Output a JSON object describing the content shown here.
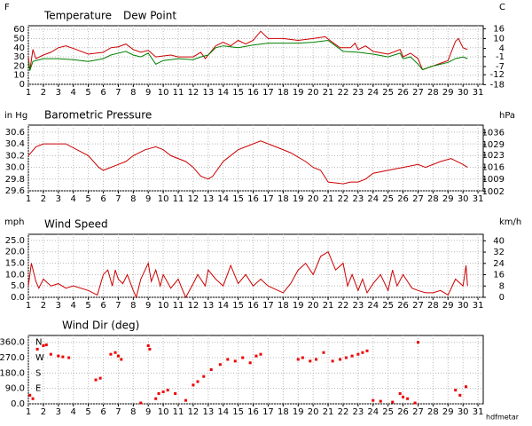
{
  "chart_data": [
    {
      "type": "line",
      "y_unit": "F",
      "y2_unit": "C",
      "xlim": [
        1,
        31.35
      ],
      "xticks": [
        1,
        2,
        3,
        4,
        5,
        6,
        7,
        8,
        9,
        10,
        11,
        12,
        13,
        14,
        15,
        16,
        17,
        18,
        19,
        20,
        21,
        22,
        23,
        24,
        25,
        26,
        27,
        28,
        29,
        30,
        31
      ],
      "ylim": [
        0,
        64
      ],
      "yticks": [
        0,
        10,
        20,
        30,
        40,
        50,
        60
      ],
      "y2lim": [
        -17.8,
        17.8
      ],
      "y2ticks": [
        16,
        10,
        4,
        -1,
        -7,
        -12,
        -18
      ],
      "grid": true,
      "series": [
        {
          "name": "Temperature",
          "color": "#cc0000",
          "x": [
            1,
            1.1,
            1.3,
            1.5,
            2,
            2.5,
            3,
            3.5,
            4.2,
            5,
            6,
            6.5,
            7,
            7.5,
            8,
            8.5,
            9,
            9.5,
            10.5,
            11,
            12,
            12.5,
            12.8,
            13.5,
            14,
            14.5,
            15,
            15.5,
            16,
            16.5,
            17,
            18,
            19,
            20,
            20.8,
            21.2,
            21.8,
            22.5,
            22.8,
            23,
            23.5,
            24,
            25,
            25.8,
            26,
            26.5,
            27,
            27.3,
            28,
            29,
            29.5,
            29.7,
            30,
            30.3
          ],
          "values": [
            30,
            15,
            38,
            28,
            32,
            35,
            40,
            42,
            38,
            33,
            35,
            40,
            41,
            44,
            38,
            35,
            37,
            30,
            32,
            30,
            30,
            35,
            28,
            42,
            46,
            42,
            48,
            44,
            48,
            58,
            50,
            50,
            48,
            50,
            52,
            47,
            40,
            40,
            45,
            38,
            42,
            36,
            33,
            38,
            30,
            34,
            28,
            16,
            20,
            26,
            47,
            50,
            40,
            38
          ]
        },
        {
          "name": "Dew Point",
          "color": "#008000",
          "x": [
            1,
            1.1,
            1.3,
            2,
            3,
            4,
            5,
            6,
            6.5,
            7.5,
            8,
            8.5,
            9,
            9.5,
            10,
            11,
            12,
            12.5,
            13,
            13.5,
            14,
            15,
            16,
            17,
            19,
            20,
            21,
            21.5,
            22,
            23,
            24,
            25,
            25.8,
            26,
            26.5,
            27,
            27.3,
            28,
            29,
            29.5,
            30,
            30.3
          ],
          "values": [
            25,
            15,
            25,
            28,
            28,
            27,
            25,
            28,
            32,
            36,
            32,
            30,
            34,
            22,
            26,
            28,
            27,
            30,
            32,
            40,
            42,
            40,
            43,
            45,
            45,
            46,
            48,
            42,
            36,
            35,
            33,
            30,
            34,
            28,
            30,
            22,
            16,
            20,
            24,
            28,
            30,
            28
          ]
        }
      ]
    },
    {
      "type": "line",
      "y_unit": "in Hg",
      "y2_unit": "hPa",
      "xlim": [
        1,
        31.35
      ],
      "xticks": [
        1,
        2,
        3,
        4,
        5,
        6,
        7,
        8,
        9,
        10,
        11,
        12,
        13,
        14,
        15,
        16,
        17,
        18,
        19,
        20,
        21,
        22,
        23,
        24,
        25,
        26,
        27,
        28,
        29,
        30,
        31
      ],
      "ylim": [
        29.6,
        30.72
      ],
      "yticks": [
        29.6,
        29.8,
        {
          "value": 30,
          "label": "30.0"
        },
        30.2,
        30.4,
        30.6
      ],
      "y2lim": [
        1002.4,
        1040.3
      ],
      "y2ticks": [
        1036,
        1029,
        1023,
        1016,
        1009,
        1002
      ],
      "grid": true,
      "series": [
        {
          "name": "Barometric Pressure",
          "color": "#cc0000",
          "x": [
            1,
            1.5,
            2,
            3.5,
            5,
            5.7,
            6,
            7,
            7.5,
            8,
            8.8,
            9.5,
            10,
            10.5,
            11.5,
            12,
            12.5,
            13,
            13.3,
            14,
            15,
            15.5,
            16.5,
            17.5,
            18.5,
            19.5,
            20,
            20.5,
            21,
            22,
            22.5,
            23,
            23.5,
            24,
            25,
            26,
            27,
            27.5,
            28.5,
            29.2,
            30,
            30.3
          ],
          "values": [
            30.2,
            30.35,
            30.4,
            30.4,
            30.2,
            30.0,
            29.95,
            30.05,
            30.1,
            30.2,
            30.3,
            30.35,
            30.3,
            30.2,
            30.1,
            30.0,
            29.85,
            29.8,
            29.85,
            30.1,
            30.3,
            30.35,
            30.45,
            30.35,
            30.25,
            30.1,
            30.0,
            29.95,
            29.75,
            29.72,
            29.75,
            29.75,
            29.8,
            29.9,
            29.95,
            30.0,
            30.05,
            30.0,
            30.1,
            30.15,
            30.05,
            30.0
          ]
        }
      ]
    },
    {
      "type": "line",
      "y_unit": "mph",
      "y2_unit": "km/h",
      "xlim": [
        1,
        31.35
      ],
      "xticks": [
        1,
        2,
        3,
        4,
        5,
        6,
        7,
        8,
        9,
        10,
        11,
        12,
        13,
        14,
        15,
        16,
        17,
        18,
        19,
        20,
        21,
        22,
        23,
        24,
        25,
        26,
        27,
        28,
        29,
        30,
        31
      ],
      "ylim": [
        0,
        27.7
      ],
      "yticks": [
        {
          "value": 0,
          "label": "0.0"
        },
        {
          "value": 5,
          "label": "5.0"
        },
        {
          "value": 10,
          "label": "10.0"
        },
        {
          "value": 15,
          "label": "15.0"
        },
        {
          "value": 20,
          "label": "20.0"
        },
        {
          "value": 25,
          "label": "25.0"
        }
      ],
      "y2lim": [
        0,
        44.6
      ],
      "y2ticks": [
        0,
        8,
        16,
        24,
        32,
        40
      ],
      "grid": true,
      "series": [
        {
          "name": "Wind Speed",
          "color": "#cc0000",
          "x": [
            1,
            1.2,
            1.5,
            1.7,
            2,
            2.5,
            3,
            3.5,
            4,
            5,
            5.3,
            5.6,
            6,
            6.3,
            6.6,
            6.8,
            7,
            7.3,
            7.6,
            8,
            8.2,
            8.5,
            9,
            9.2,
            9.5,
            9.8,
            10,
            10.5,
            11,
            11.3,
            11.5,
            12,
            12.3,
            12.8,
            13,
            13.5,
            14,
            14.5,
            15,
            15.5,
            16,
            16.5,
            17,
            18,
            18.5,
            19,
            19.5,
            20,
            20.5,
            21,
            21.5,
            22,
            22.3,
            22.6,
            23,
            23.3,
            23.6,
            24,
            24.5,
            25,
            25.3,
            25.6,
            26,
            26.3,
            26.6,
            27,
            27.5,
            28,
            28.5,
            29,
            29.5,
            30,
            30.2,
            30.3
          ],
          "values": [
            5,
            15,
            7,
            4,
            8,
            5,
            6,
            4,
            5,
            3,
            2,
            1,
            10,
            12,
            5,
            12,
            8,
            6,
            10,
            3,
            0,
            8,
            15,
            7,
            12,
            5,
            10,
            4,
            8,
            3,
            0,
            6,
            10,
            5,
            12,
            8,
            5,
            14,
            6,
            10,
            5,
            8,
            5,
            2,
            6,
            12,
            15,
            10,
            18,
            20,
            12,
            15,
            5,
            10,
            3,
            8,
            2,
            6,
            10,
            3,
            12,
            5,
            10,
            7,
            4,
            3,
            2,
            2,
            3,
            1,
            8,
            5,
            14,
            5
          ]
        }
      ]
    },
    {
      "type": "scatter",
      "annotation": "hdfmetar",
      "xlim": [
        1,
        31.35
      ],
      "xticks": [
        1,
        2,
        3,
        4,
        5,
        6,
        7,
        8,
        9,
        10,
        11,
        12,
        13,
        14,
        15,
        16,
        17,
        18,
        19,
        20,
        21,
        22,
        23,
        24,
        25,
        26,
        27,
        28,
        29,
        30,
        31
      ],
      "ylim": [
        0,
        400
      ],
      "yticks": [
        {
          "value": 0,
          "label": "0.0"
        },
        {
          "value": 90,
          "label": "90.0"
        },
        {
          "value": 180,
          "label": "180.0"
        },
        {
          "value": 270,
          "label": "270.0"
        },
        {
          "value": 360,
          "label": "360.0"
        }
      ],
      "direction_labels": [
        {
          "value": 360,
          "label": "N"
        },
        {
          "value": 270,
          "label": "W"
        },
        {
          "value": 180,
          "label": "S"
        },
        {
          "value": 90,
          "label": "E"
        }
      ],
      "grid": true,
      "series": [
        {
          "name": "Wind Dir (deg)",
          "color": "#ee0000",
          "x": [
            1.1,
            1.3,
            1.6,
            2,
            2.2,
            2.5,
            3,
            3.3,
            3.7,
            5.5,
            5.8,
            6.5,
            6.8,
            7,
            7.2,
            8.5,
            9,
            9.1,
            9.5,
            9.7,
            10,
            10.3,
            10.8,
            11.5,
            12,
            12.3,
            12.7,
            13.2,
            13.8,
            14.3,
            14.8,
            15.3,
            15.8,
            16.2,
            16.5,
            19,
            19.3,
            19.8,
            20.2,
            20.7,
            21.3,
            21.8,
            22.2,
            22.6,
            23,
            23.3,
            23.6,
            24,
            24.5,
            25.3,
            25.8,
            26,
            26.3,
            26.8,
            27,
            29.5,
            29.8,
            30.2
          ],
          "values": [
            50,
            30,
            320,
            340,
            345,
            290,
            280,
            275,
            270,
            140,
            150,
            290,
            300,
            280,
            260,
            5,
            340,
            320,
            30,
            60,
            70,
            80,
            60,
            20,
            110,
            130,
            160,
            200,
            230,
            260,
            250,
            270,
            240,
            280,
            290,
            260,
            270,
            250,
            260,
            300,
            250,
            260,
            270,
            280,
            290,
            300,
            310,
            20,
            15,
            10,
            60,
            40,
            30,
            5,
            360,
            80,
            50,
            100
          ]
        }
      ]
    }
  ]
}
